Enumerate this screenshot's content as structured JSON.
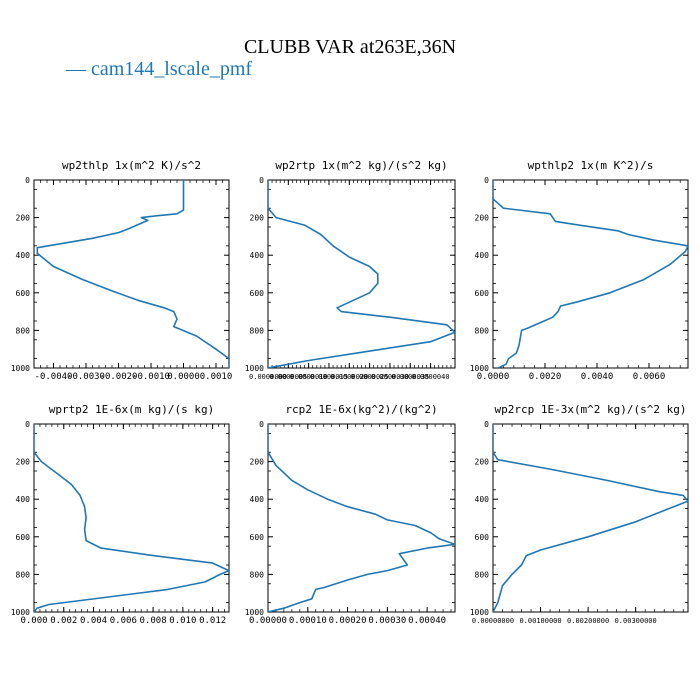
{
  "title": "CLUBB VAR at263E,36N",
  "legend": {
    "dash": "—",
    "label": "cam144_lscale_pmf",
    "color": "#1f77b4"
  },
  "chart_data": [
    {
      "type": "line",
      "title": "wp2thlp  1x(m^2 K)/s^2",
      "xlim": [
        -0.0046,
        0.0014
      ],
      "ylim": [
        1000,
        0
      ],
      "y_reversed": true,
      "xticks": [
        -0.004,
        -0.003,
        -0.002,
        -0.001,
        0.0,
        0.001
      ],
      "xticklabels": [
        "-0.0040",
        "-0.0030",
        "-0.0020",
        "-0.0010",
        "0.0000",
        "0.0010"
      ],
      "yticks": [
        0,
        200,
        400,
        600,
        800,
        1000
      ],
      "yticklabels": [
        "0",
        "200",
        "400",
        "600",
        "800",
        "1000"
      ],
      "series": [
        {
          "color": "#1f77b4",
          "x": [
            0.0,
            0.0,
            -0.0002,
            -0.0008,
            -0.0013,
            -0.0011,
            -0.0017,
            -0.002,
            -0.0028,
            -0.0045,
            -0.0045,
            -0.004,
            -0.0031,
            -0.0022,
            -0.0014,
            -0.0006,
            -0.0003,
            -0.0002,
            -0.0003,
            0.0004,
            0.001,
            0.0014,
            0.0014
          ],
          "y": [
            0,
            160,
            180,
            190,
            200,
            215,
            260,
            280,
            310,
            360,
            390,
            460,
            530,
            590,
            640,
            680,
            700,
            740,
            780,
            830,
            900,
            950,
            1000
          ]
        }
      ]
    },
    {
      "type": "line",
      "title": "wp2rtp  1x(m^2 kg)/(s^2 kg)",
      "xlim": [
        0.0,
        4.6e-06
      ],
      "ylim": [
        1000,
        0
      ],
      "y_reversed": true,
      "xticks": [
        0.0,
        5e-07,
        1e-06,
        1.5e-06,
        2e-06,
        2.5e-06,
        3e-06,
        3.5e-06,
        4e-06
      ],
      "xticklabels": [
        "0.0000000",
        "0.0000005",
        "0.0000010",
        "0.0000015",
        "0.0000020",
        "0.0000025",
        "0.0000030",
        "0.0000035",
        "0.0000040"
      ],
      "yticks": [
        0,
        200,
        400,
        600,
        800,
        1000
      ],
      "yticklabels": [
        "0",
        "200",
        "400",
        "600",
        "800",
        "1000"
      ],
      "series": [
        {
          "color": "#1f77b4",
          "x": [
            0.0,
            0.0,
            2e-07,
            9e-07,
            1.3e-06,
            1.6e-06,
            2e-06,
            2.5e-06,
            2.7e-06,
            2.7e-06,
            2.5e-06,
            2e-06,
            1.7e-06,
            1.8e-06,
            3e-06,
            4.4e-06,
            4.6e-06,
            4e-06,
            2.5e-06,
            1e-06,
            0.0
          ],
          "y": [
            0,
            150,
            200,
            240,
            290,
            350,
            410,
            460,
            500,
            550,
            600,
            650,
            680,
            700,
            730,
            770,
            810,
            860,
            910,
            960,
            1000
          ]
        }
      ]
    },
    {
      "type": "line",
      "title": "wpthlp2  1x(m K^2)/s",
      "xlim": [
        0.0,
        0.0075
      ],
      "ylim": [
        1000,
        0
      ],
      "y_reversed": true,
      "xticks": [
        0.0,
        0.002,
        0.004,
        0.006
      ],
      "xticklabels": [
        "0.0000",
        "0.0020",
        "0.0040",
        "0.0060"
      ],
      "yticks": [
        0,
        200,
        400,
        600,
        800,
        1000
      ],
      "yticklabels": [
        "0",
        "200",
        "400",
        "600",
        "800",
        "1000"
      ],
      "series": [
        {
          "color": "#1f77b4",
          "x": [
            0.0,
            0.0,
            0.0004,
            0.0022,
            0.0024,
            0.0033,
            0.0048,
            0.0052,
            0.0062,
            0.0075,
            0.0074,
            0.0068,
            0.0058,
            0.0045,
            0.0032,
            0.0026,
            0.0025,
            0.0023,
            0.0018,
            0.0013,
            0.0011,
            0.001,
            0.0009,
            0.0006,
            0.0005,
            0.0002
          ],
          "y": [
            0,
            100,
            150,
            180,
            220,
            240,
            270,
            290,
            320,
            350,
            380,
            450,
            530,
            600,
            650,
            670,
            700,
            730,
            760,
            790,
            800,
            880,
            920,
            950,
            980,
            1000
          ]
        }
      ]
    },
    {
      "type": "line",
      "title": "wprtp2  1E-6x(m kg)/(s kg)",
      "xlim": [
        0.0,
        0.0131
      ],
      "ylim": [
        1000,
        0
      ],
      "y_reversed": true,
      "xticks": [
        0.0,
        0.002,
        0.004,
        0.006,
        0.008,
        0.01,
        0.012
      ],
      "xticklabels": [
        "0.000",
        "0.002",
        "0.004",
        "0.006",
        "0.008",
        "0.010",
        "0.012"
      ],
      "yticks": [
        0,
        200,
        400,
        600,
        800,
        1000
      ],
      "yticklabels": [
        "0",
        "200",
        "400",
        "600",
        "800",
        "1000"
      ],
      "series": [
        {
          "color": "#1f77b4",
          "x": [
            0.0,
            0.0,
            0.0005,
            0.0015,
            0.0025,
            0.0031,
            0.0034,
            0.0035,
            0.0034,
            0.0035,
            0.0045,
            0.008,
            0.012,
            0.0131,
            0.0125,
            0.0115,
            0.009,
            0.005,
            0.001,
            0.0002,
            0.0
          ],
          "y": [
            0,
            150,
            200,
            260,
            320,
            380,
            440,
            500,
            560,
            620,
            660,
            700,
            740,
            780,
            800,
            840,
            880,
            920,
            960,
            980,
            1000
          ]
        }
      ]
    },
    {
      "type": "line",
      "title": "rcp2  1E-6x(kg^2)/(kg^2)",
      "xlim": [
        0.0,
        0.00047
      ],
      "ylim": [
        1000,
        0
      ],
      "y_reversed": true,
      "xticks": [
        0.0,
        0.0001,
        0.0002,
        0.0003,
        0.0004
      ],
      "xticklabels": [
        "0.00000",
        "0.00010",
        "0.00020",
        "0.00030",
        "0.00040"
      ],
      "yticks": [
        0,
        200,
        400,
        600,
        800,
        1000
      ],
      "yticklabels": [
        "0",
        "200",
        "400",
        "600",
        "800",
        "1000"
      ],
      "series": [
        {
          "color": "#1f77b4",
          "x": [
            0.0,
            0.0,
            2e-05,
            6e-05,
            0.0001,
            0.00015,
            0.0002,
            0.00027,
            0.0003,
            0.00037,
            0.00041,
            0.00043,
            0.00047,
            0.0004,
            0.00033,
            0.00035,
            0.0003,
            0.00025,
            0.0002,
            0.00014,
            0.00012,
            0.00011,
            8e-05,
            4e-05,
            0.0
          ],
          "y": [
            0,
            150,
            220,
            300,
            350,
            400,
            440,
            480,
            510,
            540,
            580,
            610,
            640,
            660,
            690,
            750,
            780,
            800,
            830,
            870,
            880,
            930,
            950,
            980,
            1000
          ]
        }
      ]
    },
    {
      "type": "line",
      "title": "wp2rcp  1E-3x(m^2 kg)/(s^2 kg)",
      "xlim": [
        0.0,
        0.0041
      ],
      "ylim": [
        1000,
        0
      ],
      "y_reversed": true,
      "xticks": [
        0.0,
        0.001,
        0.002,
        0.003
      ],
      "xticklabels": [
        "0.00000000",
        "0.00100000",
        "0.00200000",
        "0.00300000"
      ],
      "yticks": [
        0,
        200,
        400,
        600,
        800,
        1000
      ],
      "yticklabels": [
        "0",
        "200",
        "400",
        "600",
        "800",
        "1000"
      ],
      "series": [
        {
          "color": "#1f77b4",
          "x": [
            0.0,
            0.0,
            0.0001,
            0.0012,
            0.0024,
            0.0035,
            0.004,
            0.0041,
            0.0038,
            0.003,
            0.002,
            0.001,
            0.0007,
            0.0006,
            0.0004,
            0.0002,
            0.0001,
            0.0
          ],
          "y": [
            0,
            150,
            190,
            240,
            300,
            360,
            380,
            410,
            440,
            520,
            600,
            670,
            700,
            750,
            800,
            860,
            950,
            1000
          ]
        }
      ]
    }
  ]
}
